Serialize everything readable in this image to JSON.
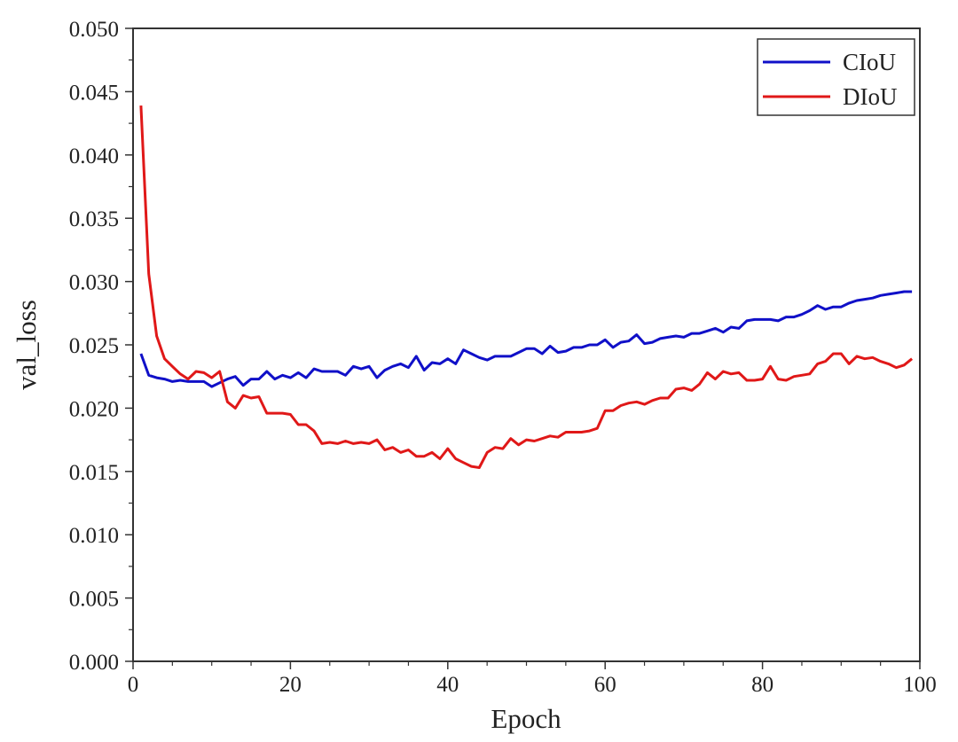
{
  "chart_data": {
    "type": "line",
    "xlabel": "Epoch",
    "ylabel": "val_loss",
    "xlim": [
      0,
      100
    ],
    "ylim": [
      0,
      0.05
    ],
    "x_ticks": [
      0,
      20,
      40,
      60,
      80,
      100
    ],
    "x_tick_labels": [
      "0",
      "20",
      "40",
      "60",
      "80",
      "100"
    ],
    "y_ticks": [
      0,
      0.005,
      0.01,
      0.015,
      0.02,
      0.025,
      0.03,
      0.035,
      0.04,
      0.045,
      0.05
    ],
    "y_tick_labels": [
      "0.000",
      "0.005",
      "0.010",
      "0.015",
      "0.020",
      "0.025",
      "0.030",
      "0.035",
      "0.040",
      "0.045",
      "0.050"
    ],
    "grid": false,
    "legend_position": "top-right",
    "x": [
      1,
      2,
      3,
      4,
      5,
      6,
      7,
      8,
      9,
      10,
      11,
      12,
      13,
      14,
      15,
      16,
      17,
      18,
      19,
      20,
      21,
      22,
      23,
      24,
      25,
      26,
      27,
      28,
      29,
      30,
      31,
      32,
      33,
      34,
      35,
      36,
      37,
      38,
      39,
      40,
      41,
      42,
      43,
      44,
      45,
      46,
      47,
      48,
      49,
      50,
      51,
      52,
      53,
      54,
      55,
      56,
      57,
      58,
      59,
      60,
      61,
      62,
      63,
      64,
      65,
      66,
      67,
      68,
      69,
      70,
      71,
      72,
      73,
      74,
      75,
      76,
      77,
      78,
      79,
      80,
      81,
      82,
      83,
      84,
      85,
      86,
      87,
      88,
      89,
      90,
      91,
      92,
      93,
      94,
      95,
      96,
      97,
      98,
      99
    ],
    "series": [
      {
        "name": "CIoU",
        "color": "#1010c8",
        "values": [
          0.0243,
          0.0226,
          0.0224,
          0.0223,
          0.0221,
          0.0222,
          0.0221,
          0.0221,
          0.0221,
          0.0217,
          0.022,
          0.0223,
          0.0225,
          0.0218,
          0.0223,
          0.0223,
          0.0229,
          0.0223,
          0.0226,
          0.0224,
          0.0228,
          0.0224,
          0.0231,
          0.0229,
          0.0229,
          0.0229,
          0.0226,
          0.0233,
          0.0231,
          0.0233,
          0.0224,
          0.023,
          0.0233,
          0.0235,
          0.0232,
          0.0241,
          0.023,
          0.0236,
          0.0235,
          0.0239,
          0.0235,
          0.0246,
          0.0243,
          0.024,
          0.0238,
          0.0241,
          0.0241,
          0.0241,
          0.0244,
          0.0247,
          0.0247,
          0.0243,
          0.0249,
          0.0244,
          0.0245,
          0.0248,
          0.0248,
          0.025,
          0.025,
          0.0254,
          0.0248,
          0.0252,
          0.0253,
          0.0258,
          0.0251,
          0.0252,
          0.0255,
          0.0256,
          0.0257,
          0.0256,
          0.0259,
          0.0259,
          0.0261,
          0.0263,
          0.026,
          0.0264,
          0.0263,
          0.0269,
          0.027,
          0.027,
          0.027,
          0.0269,
          0.0272,
          0.0272,
          0.0274,
          0.0277,
          0.0281,
          0.0278,
          0.028,
          0.028,
          0.0283,
          0.0285,
          0.0286,
          0.0287,
          0.0289,
          0.029,
          0.0291,
          0.0292,
          0.0292
        ]
      },
      {
        "name": "DIoU",
        "color": "#e01818",
        "values": [
          0.0439,
          0.0306,
          0.0257,
          0.0239,
          0.0233,
          0.0227,
          0.0223,
          0.0229,
          0.0228,
          0.0224,
          0.0229,
          0.0205,
          0.02,
          0.021,
          0.0208,
          0.0209,
          0.0196,
          0.0196,
          0.0196,
          0.0195,
          0.0187,
          0.0187,
          0.0182,
          0.0172,
          0.0173,
          0.0172,
          0.0174,
          0.0172,
          0.0173,
          0.0172,
          0.0175,
          0.0167,
          0.0169,
          0.0165,
          0.0167,
          0.0162,
          0.0162,
          0.0165,
          0.016,
          0.0168,
          0.016,
          0.0157,
          0.0154,
          0.0153,
          0.0165,
          0.0169,
          0.0168,
          0.0176,
          0.0171,
          0.0175,
          0.0174,
          0.0176,
          0.0178,
          0.0177,
          0.0181,
          0.0181,
          0.0181,
          0.0182,
          0.0184,
          0.0198,
          0.0198,
          0.0202,
          0.0204,
          0.0205,
          0.0203,
          0.0206,
          0.0208,
          0.0208,
          0.0215,
          0.0216,
          0.0214,
          0.0219,
          0.0228,
          0.0223,
          0.0229,
          0.0227,
          0.0228,
          0.0222,
          0.0222,
          0.0223,
          0.0233,
          0.0223,
          0.0222,
          0.0225,
          0.0226,
          0.0227,
          0.0235,
          0.0237,
          0.0243,
          0.0243,
          0.0235,
          0.0241,
          0.0239,
          0.024,
          0.0237,
          0.0235,
          0.0232,
          0.0234,
          0.0239
        ]
      }
    ]
  }
}
